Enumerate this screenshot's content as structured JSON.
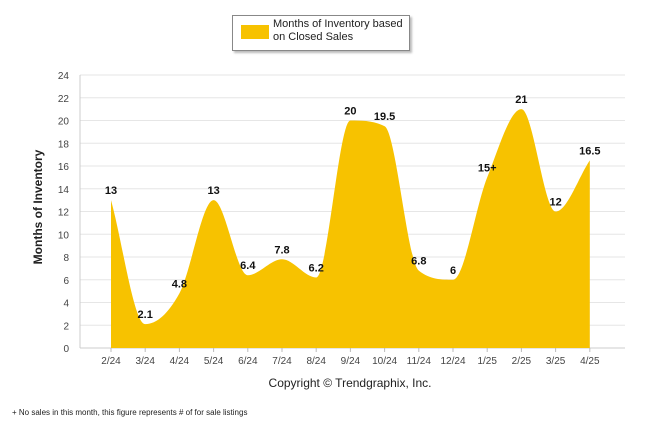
{
  "chart_data": {
    "type": "area",
    "legend_label": "Months of Inventory based on Closed Sales",
    "legend_position": "top-center",
    "ylabel": "Months of Inventory",
    "xlabel": "",
    "caption": "Copyright © Trendgraphix, Inc.",
    "footnote": "+ No sales in this month, this figure represents # of for sale listings",
    "categories": [
      "2/24",
      "3/24",
      "4/24",
      "5/24",
      "6/24",
      "7/24",
      "8/24",
      "9/24",
      "10/24",
      "11/24",
      "12/24",
      "1/25",
      "2/25",
      "3/25",
      "4/25"
    ],
    "series": [
      {
        "values": [
          13,
          2.1,
          4.8,
          13,
          6.4,
          7.8,
          6.2,
          20,
          19.5,
          6.8,
          6,
          15,
          21,
          12,
          16.5
        ]
      }
    ],
    "data_labels": [
      "13",
      "2.1",
      "4.8",
      "13",
      "6.4",
      "7.8",
      "6.2",
      "20",
      "19.5",
      "6.8",
      "6",
      "15+",
      "21",
      "12",
      "16.5"
    ],
    "y_ticks": [
      0,
      2,
      4,
      6,
      8,
      10,
      12,
      14,
      16,
      18,
      20,
      22,
      24
    ],
    "ylim": [
      0,
      24
    ],
    "grid": true,
    "fill_color": "#f7c200",
    "grid_color": "#e6e6e6"
  }
}
